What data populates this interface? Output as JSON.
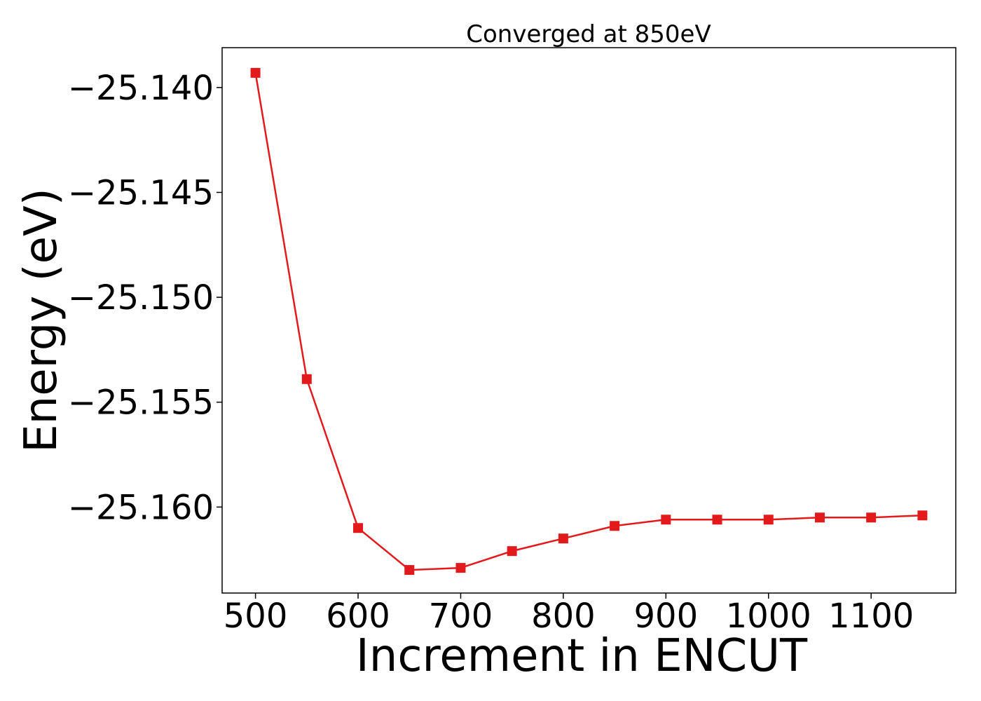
{
  "chart_data": {
    "type": "line",
    "title": "Converged at 850eV",
    "xlabel": "Increment in ENCUT",
    "ylabel": "Energy (eV)",
    "xlim": [
      467.5,
      1182.5
    ],
    "ylim": [
      -25.1641,
      -25.1381
    ],
    "xticks": [
      500,
      600,
      700,
      800,
      900,
      1000,
      1100
    ],
    "xtick_labels": [
      "500",
      "600",
      "700",
      "800",
      "900",
      "1000",
      "1100"
    ],
    "yticks": [
      -25.14,
      -25.145,
      -25.15,
      -25.155,
      -25.16
    ],
    "ytick_labels": [
      "−25.140",
      "−25.145",
      "−25.150",
      "−25.155",
      "−25.160"
    ],
    "grid": false,
    "series": [
      {
        "color": "#e31a1c",
        "marker": "square",
        "x": [
          500,
          550,
          600,
          650,
          700,
          750,
          800,
          850,
          900,
          950,
          1000,
          1050,
          1100,
          1150
        ],
        "y": [
          -25.1393,
          -25.1539,
          -25.161,
          -25.163,
          -25.1629,
          -25.1621,
          -25.1615,
          -25.1609,
          -25.1606,
          -25.1606,
          -25.1606,
          -25.1605,
          -25.1605,
          -25.1604
        ]
      }
    ]
  }
}
